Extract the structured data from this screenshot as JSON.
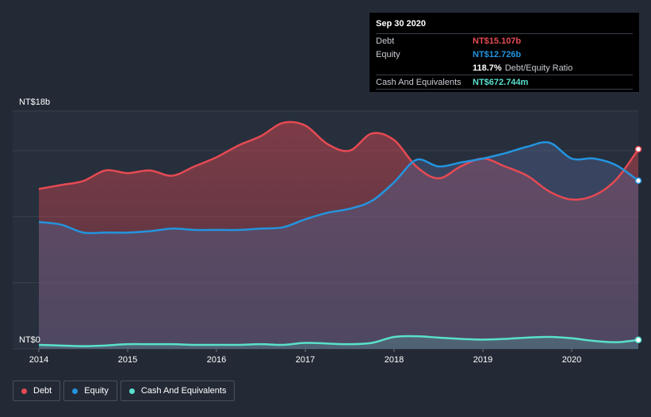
{
  "colors": {
    "background": "#232a36",
    "debt": "#e64a53",
    "equity": "#2394df",
    "cash": "#59e0cd",
    "gridline": "#3a414d"
  },
  "tooltip": {
    "date": "Sep 30 2020",
    "debt_label": "Debt",
    "debt_value": "NT$15.107b",
    "equity_label": "Equity",
    "equity_value": "NT$12.726b",
    "ratio_value": "118.7%",
    "ratio_label": "Debt/Equity Ratio",
    "cash_label": "Cash And Equivalents",
    "cash_value": "NT$672.744m"
  },
  "legend": {
    "debt": "Debt",
    "equity": "Equity",
    "cash": "Cash And Equivalents"
  },
  "chart_data": {
    "type": "area",
    "title": "",
    "xlabel": "",
    "ylabel": "",
    "ylim": [
      0,
      18
    ],
    "y_unit": "NT$ billions",
    "y_axis_labels": [
      "NT$18b",
      "NT$0"
    ],
    "x_ticks": [
      "2014",
      "2015",
      "2016",
      "2017",
      "2018",
      "2019",
      "2020"
    ],
    "x_range": [
      2014.0,
      2020.75
    ],
    "series": [
      {
        "name": "Debt",
        "x": [
          2014.0,
          2014.25,
          2014.5,
          2014.75,
          2015.0,
          2015.25,
          2015.5,
          2015.75,
          2016.0,
          2016.25,
          2016.5,
          2016.75,
          2017.0,
          2017.25,
          2017.5,
          2017.75,
          2018.0,
          2018.25,
          2018.5,
          2018.75,
          2019.0,
          2019.25,
          2019.5,
          2019.75,
          2020.0,
          2020.25,
          2020.5,
          2020.75
        ],
        "values": [
          12.1,
          12.4,
          12.7,
          13.5,
          13.3,
          13.5,
          13.1,
          13.8,
          14.5,
          15.4,
          16.1,
          17.1,
          16.9,
          15.5,
          15.0,
          16.3,
          15.8,
          13.8,
          12.9,
          13.8,
          14.4,
          13.8,
          13.1,
          11.9,
          11.3,
          11.6,
          12.8,
          15.107
        ]
      },
      {
        "name": "Equity",
        "x": [
          2014.0,
          2014.25,
          2014.5,
          2014.75,
          2015.0,
          2015.25,
          2015.5,
          2015.75,
          2016.0,
          2016.25,
          2016.5,
          2016.75,
          2017.0,
          2017.25,
          2017.5,
          2017.75,
          2018.0,
          2018.25,
          2018.5,
          2018.75,
          2019.0,
          2019.25,
          2019.5,
          2019.75,
          2020.0,
          2020.25,
          2020.5,
          2020.75
        ],
        "values": [
          9.6,
          9.4,
          8.8,
          8.8,
          8.8,
          8.9,
          9.1,
          9.0,
          9.0,
          9.0,
          9.1,
          9.2,
          9.8,
          10.3,
          10.6,
          11.2,
          12.6,
          14.3,
          13.8,
          14.1,
          14.4,
          14.8,
          15.3,
          15.6,
          14.4,
          14.4,
          13.9,
          12.726
        ]
      },
      {
        "name": "Cash And Equivalents",
        "x": [
          2014.0,
          2014.25,
          2014.5,
          2014.75,
          2015.0,
          2015.25,
          2015.5,
          2015.75,
          2016.0,
          2016.25,
          2016.5,
          2016.75,
          2017.0,
          2017.25,
          2017.5,
          2017.75,
          2018.0,
          2018.25,
          2018.5,
          2018.75,
          2019.0,
          2019.25,
          2019.5,
          2019.75,
          2020.0,
          2020.25,
          2020.5,
          2020.75
        ],
        "values": [
          0.3,
          0.25,
          0.2,
          0.25,
          0.35,
          0.35,
          0.35,
          0.3,
          0.3,
          0.3,
          0.35,
          0.3,
          0.45,
          0.4,
          0.35,
          0.45,
          0.9,
          0.95,
          0.85,
          0.75,
          0.7,
          0.75,
          0.85,
          0.9,
          0.8,
          0.6,
          0.5,
          0.673
        ]
      }
    ]
  }
}
